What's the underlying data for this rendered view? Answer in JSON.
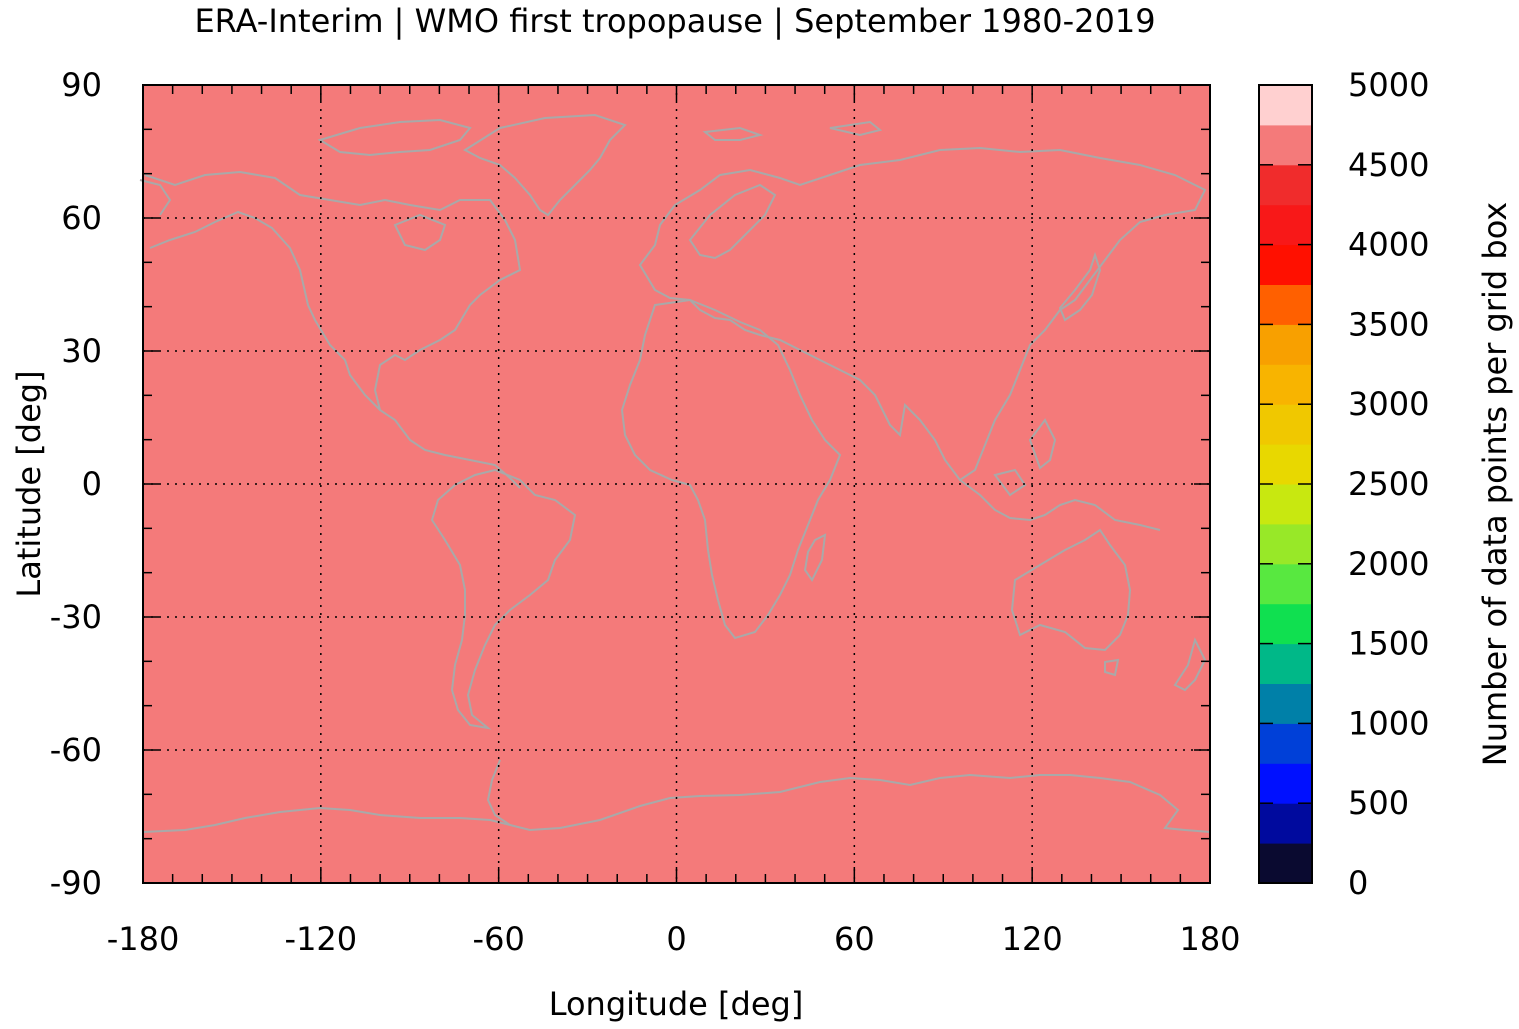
{
  "title": "ERA-Interim | WMO first tropopause | September 1980-2019",
  "chart_data": {
    "type": "heatmap",
    "title": "ERA-Interim | WMO first tropopause | September 1980-2019",
    "xlabel": "Longitude [deg]",
    "ylabel": "Latitude [deg]",
    "xlim": [
      -180,
      180
    ],
    "ylim": [
      -90,
      90
    ],
    "xticks": [
      -180,
      -120,
      -60,
      0,
      60,
      120,
      180
    ],
    "yticks": [
      -90,
      -60,
      -30,
      0,
      30,
      60,
      90
    ],
    "x_tick_labels": [
      "-180",
      "-120",
      "-60",
      "0",
      "60",
      "120",
      "180"
    ],
    "y_tick_labels": [
      "-90",
      "-60",
      "-30",
      "0",
      "30",
      "60",
      "90"
    ],
    "grid": true,
    "field_value_range": [
      4500,
      4750
    ],
    "field_color": "#f47a7a",
    "coastline_color": "#a9a9a9",
    "colorbar": {
      "label": "Number of data points per grid box",
      "range": [
        0,
        5000
      ],
      "ticks": [
        0,
        500,
        1000,
        1500,
        2000,
        2500,
        3000,
        3500,
        4000,
        4500,
        5000
      ],
      "tick_labels": [
        "0",
        "500",
        "1000",
        "1500",
        "2000",
        "2500",
        "3000",
        "3500",
        "4000",
        "4500",
        "5000"
      ],
      "step": 250,
      "colors": [
        "#0a0a30",
        "#000a9e",
        "#0010ff",
        "#0040d8",
        "#0080a8",
        "#00b888",
        "#10e050",
        "#58e840",
        "#98e828",
        "#c8e810",
        "#e8d800",
        "#f0c800",
        "#f8b400",
        "#f8a000",
        "#ff6000",
        "#ff1000",
        "#f81818",
        "#f02c2c",
        "#f47a7a",
        "#ffd0d0"
      ]
    }
  }
}
